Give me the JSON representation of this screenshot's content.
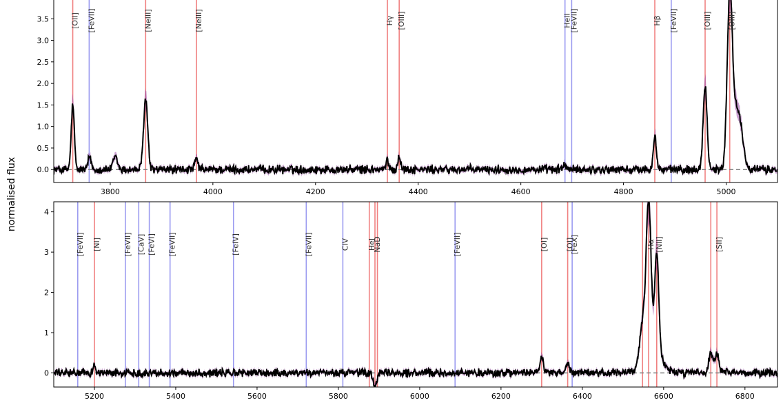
{
  "chart_data": [
    {
      "type": "line",
      "title": "",
      "xlabel": "",
      "ylabel": "normalised flux",
      "xlim": [
        3690,
        5100
      ],
      "ylim": [
        -0.3,
        4.0
      ],
      "xticks": [
        "3800",
        "4000",
        "4200",
        "4400",
        "4600",
        "4800",
        "5000"
      ],
      "yticks": [
        "0.0",
        "0.5",
        "1.0",
        "1.5",
        "2.0",
        "2.5",
        "3.0",
        "3.5"
      ],
      "continuum": 0.0,
      "emission_lines": [
        {
          "label": "[OII]",
          "wavelength": 3727,
          "kind": "red"
        },
        {
          "label": "[FeVII]",
          "wavelength": 3759,
          "kind": "blue"
        },
        {
          "label": "[NeIII]",
          "wavelength": 3869,
          "kind": "red"
        },
        {
          "label": "[NeIII]",
          "wavelength": 3968,
          "kind": "red"
        },
        {
          "label": "Hγ",
          "wavelength": 4340,
          "kind": "red"
        },
        {
          "label": "[OIII]",
          "wavelength": 4363,
          "kind": "red"
        },
        {
          "label": "HeII",
          "wavelength": 4686,
          "kind": "blue"
        },
        {
          "label": "[FeVII]",
          "wavelength": 4699,
          "kind": "blue"
        },
        {
          "label": "Hβ",
          "wavelength": 4861,
          "kind": "red"
        },
        {
          "label": "[FeVII]",
          "wavelength": 4893,
          "kind": "blue"
        },
        {
          "label": "[OIII]",
          "wavelength": 4959,
          "kind": "red"
        },
        {
          "label": "[OIII]",
          "wavelength": 5007,
          "kind": "red"
        }
      ],
      "peaks": [
        {
          "center": 3727,
          "amp": 1.5,
          "sigma": 3
        },
        {
          "center": 3760,
          "amp": 0.3,
          "sigma": 3
        },
        {
          "center": 3810,
          "amp": 0.3,
          "sigma": 4
        },
        {
          "center": 3869,
          "amp": 1.65,
          "sigma": 4
        },
        {
          "center": 3968,
          "amp": 0.25,
          "sigma": 3
        },
        {
          "center": 4340,
          "amp": 0.2,
          "sigma": 3
        },
        {
          "center": 4363,
          "amp": 0.3,
          "sigma": 3
        },
        {
          "center": 4686,
          "amp": 0.1,
          "sigma": 4
        },
        {
          "center": 4861,
          "amp": 0.8,
          "sigma": 3
        },
        {
          "center": 4959,
          "amp": 1.9,
          "sigma": 4
        },
        {
          "center": 5007,
          "amp": 3.9,
          "sigma": 5
        },
        {
          "center": 5022,
          "amp": 1.4,
          "sigma": 9
        }
      ]
    },
    {
      "type": "line",
      "title": "",
      "xlabel": "",
      "ylabel": "normalised flux",
      "xlim": [
        5100,
        6880
      ],
      "ylim": [
        -0.35,
        4.25
      ],
      "xticks": [
        "5200",
        "5400",
        "5600",
        "5800",
        "6000",
        "6200",
        "6400",
        "6600",
        "6800"
      ],
      "yticks": [
        "0",
        "1",
        "2",
        "3",
        "4"
      ],
      "continuum": 0.0,
      "emission_lines": [
        {
          "label": "[FeVII]",
          "wavelength": 5159,
          "kind": "blue"
        },
        {
          "label": "[NI]",
          "wavelength": 5200,
          "kind": "red"
        },
        {
          "label": "[FeVII]",
          "wavelength": 5276,
          "kind": "blue"
        },
        {
          "label": "[CaV]",
          "wavelength": 5309,
          "kind": "blue"
        },
        {
          "label": "[FeVI]",
          "wavelength": 5335,
          "kind": "blue"
        },
        {
          "label": "[FeVII]",
          "wavelength": 5386,
          "kind": "blue"
        },
        {
          "label": "[FeIV]",
          "wavelength": 5542,
          "kind": "blue"
        },
        {
          "label": "[FeVII]",
          "wavelength": 5721,
          "kind": "blue"
        },
        {
          "label": "CIV",
          "wavelength": 5811,
          "kind": "blue"
        },
        {
          "label": "HeI",
          "wavelength": 5876,
          "kind": "red"
        },
        {
          "label": "NaD",
          "wavelength": 5890,
          "kind": "red"
        },
        {
          "label": "",
          "wavelength": 5896,
          "kind": "red"
        },
        {
          "label": "[FeVII]",
          "wavelength": 6087,
          "kind": "blue"
        },
        {
          "label": "[OI]",
          "wavelength": 6300,
          "kind": "red"
        },
        {
          "label": "[OI]",
          "wavelength": 6364,
          "kind": "red"
        },
        {
          "label": "[FeX]",
          "wavelength": 6375,
          "kind": "blue"
        },
        {
          "label": "",
          "wavelength": 6548,
          "kind": "red"
        },
        {
          "label": "Hα",
          "wavelength": 6563,
          "kind": "red"
        },
        {
          "label": "[NII]",
          "wavelength": 6583,
          "kind": "red"
        },
        {
          "label": "",
          "wavelength": 6716,
          "kind": "red"
        },
        {
          "label": "[SII]",
          "wavelength": 6731,
          "kind": "red"
        }
      ],
      "peaks": [
        {
          "center": 5200,
          "amp": 0.2,
          "sigma": 3
        },
        {
          "center": 5890,
          "amp": -0.3,
          "sigma": 5
        },
        {
          "center": 6300,
          "amp": 0.35,
          "sigma": 5
        },
        {
          "center": 6364,
          "amp": 0.2,
          "sigma": 5
        },
        {
          "center": 6563,
          "amp": 3.7,
          "sigma": 6
        },
        {
          "center": 6583,
          "amp": 2.5,
          "sigma": 5
        },
        {
          "center": 6548,
          "amp": 0.9,
          "sigma": 6
        },
        {
          "center": 6570,
          "amp": 0.6,
          "sigma": 22
        },
        {
          "center": 6716,
          "amp": 0.45,
          "sigma": 5
        },
        {
          "center": 6731,
          "amp": 0.45,
          "sigma": 5
        }
      ]
    }
  ],
  "colors": {
    "spectrum": "#000000",
    "uncertainty_band": "#9b4fa8",
    "red_line": "#f08080",
    "blue_line": "#9b9bf0",
    "continuum": "#808080"
  }
}
